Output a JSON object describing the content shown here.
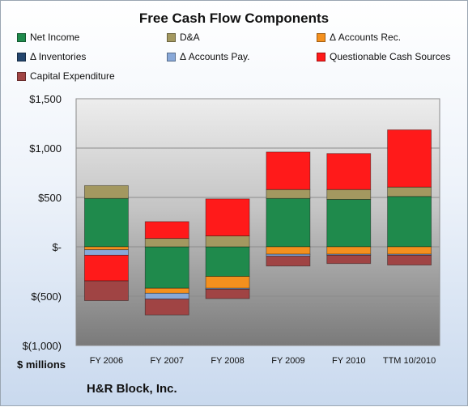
{
  "chart_data": {
    "type": "bar",
    "stacked": true,
    "title": "Free Cash Flow Components",
    "unit_label": "$ millions",
    "ylim": [
      -1000,
      1500
    ],
    "yticks": [
      {
        "value": 1500,
        "label": "$1,500"
      },
      {
        "value": 1000,
        "label": "$1,000"
      },
      {
        "value": 500,
        "label": "$500"
      },
      {
        "value": 0,
        "label": "$-"
      },
      {
        "value": -500,
        "label": "$(500)"
      },
      {
        "value": -1000,
        "label": "$(1,000)"
      }
    ],
    "grid": true,
    "legend_position": "top",
    "categories": [
      "FY 2006",
      "FY 2007",
      "FY 2008",
      "FY 2009",
      "FY 2010",
      "TTM 10/2010"
    ],
    "series": [
      {
        "name": "Net Income",
        "color": "#1f8a4c",
        "values": [
          490,
          -420,
          -300,
          490,
          480,
          510
        ]
      },
      {
        "name": "D&A",
        "color": "#a39860",
        "values": [
          130,
          85,
          110,
          90,
          100,
          95
        ]
      },
      {
        "name": "Δ Accounts Rec.",
        "color": "#f4901e",
        "values": [
          -30,
          -50,
          -120,
          -75,
          -75,
          -75
        ]
      },
      {
        "name": "Δ Inventories",
        "color": "#24466e",
        "values": [
          0,
          0,
          0,
          0,
          0,
          0
        ]
      },
      {
        "name": "Δ Accounts Pay.",
        "color": "#88a8d8",
        "values": [
          -55,
          -60,
          -10,
          -20,
          -10,
          -10
        ]
      },
      {
        "name": "Questionable Cash Sources",
        "color": "#ff1a1a",
        "values": [
          -260,
          170,
          375,
          380,
          365,
          580
        ]
      },
      {
        "name": "Capital Expenditure",
        "color": "#a04444",
        "values": [
          -200,
          -160,
          -95,
          -100,
          -85,
          -100
        ]
      }
    ]
  },
  "footer": {
    "company": "H&R Block, Inc."
  }
}
